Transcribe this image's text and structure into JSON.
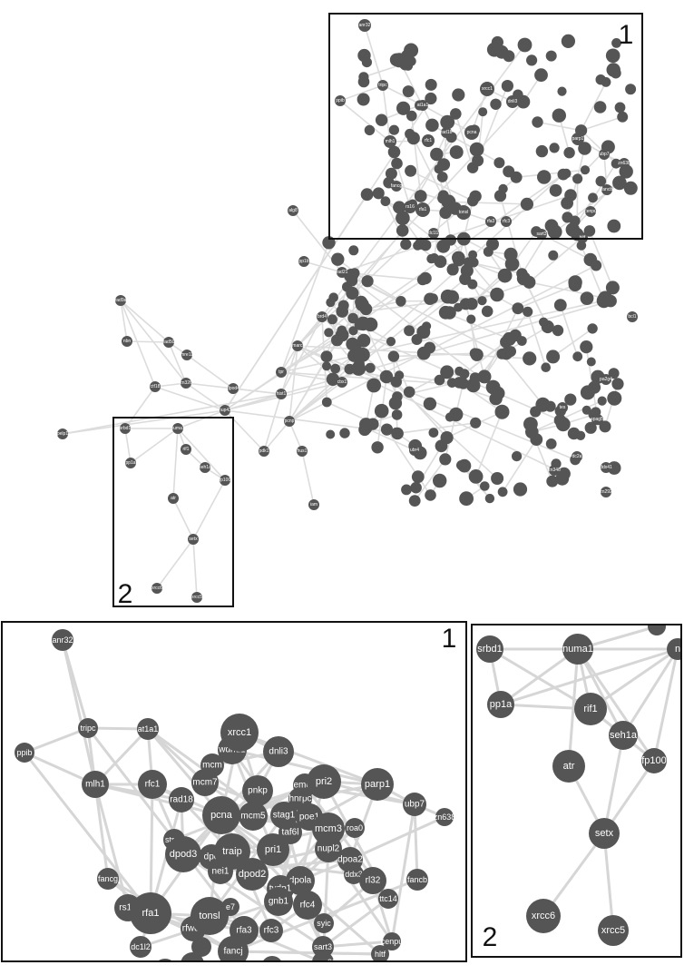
{
  "panel_labels": {
    "top_box": "1",
    "left_box": "2",
    "zoom1": "1",
    "zoom2": "2"
  },
  "overview_labels": {
    "anr32": "anr32",
    "tripc": "tripc",
    "ppib": "ppib",
    "mlh1": "mlh1",
    "at1a1": "at1a1",
    "xrcc1": "xrcc1",
    "dnli3": "dnli3",
    "parp1": "parp1",
    "ubp7": "ubp7",
    "zn638": "zn638",
    "fancb": "fancb",
    "cenpu": "cenpu",
    "fancg": "fancg",
    "rs16": "rs16",
    "rfa1": "rfa1",
    "tonsl": "tonsl",
    "rfa3": "rfa3",
    "rfc3": "rfc3",
    "sart3": "sart3",
    "rfc1": "rfc1",
    "rad18": "rad18",
    "pcna": "pcna",
    "hltf": "hltf",
    "dc1l2": "dc1l2",
    "alg8": "alg8",
    "pp1b": "pp1b",
    "rad50": "rad50",
    "nbn": "nbn",
    "mre11": "mre11",
    "ctf18": "ctf18",
    "zn326": "zn326",
    "dpod4": "dpod4",
    "rad9a": "rad9a",
    "pelp1": "pelp1",
    "smarca": "smarca",
    "pdk1": "pdk1",
    "hus1": "hus1",
    "pcnp": "pcnp",
    "iam": "iam",
    "srbd1": "srbd1",
    "numa1": "numa1",
    "pp1a": "pp1a",
    "rif1": "rif1",
    "seh1a": "seh1a",
    "fp100": "fp100",
    "atr": "atr",
    "setx": "setx",
    "xrcc6": "xrcc6",
    "xrcc5": "xrcc5",
    "brd4": "brd4",
    "tpr": "tpr",
    "nup43": "nup43",
    "hist1": "hist1",
    "rad21": "rad21",
    "cbx1": "cbx1",
    "pa2g4": "pa2g4",
    "spag5": "spag5",
    "bcl1": "bcl1",
    "zn346": "zn346",
    "ubr4": "ubr4",
    "zn292": "zn292",
    "ddx41": "ddx41",
    "dc2a": "dc2a",
    "tes": "tes"
  },
  "zoom1": {
    "nodes": {
      "anr32": "anr32",
      "tripc": "tripc",
      "ppib": "ppib",
      "at1a1": "at1a1",
      "mlh1": "mlh1",
      "rfc1": "rfc1",
      "rad18": "rad18",
      "mcm7": "mcm7",
      "mcm": "mcm",
      "wdhd1": "wdhd1",
      "xrcc1": "xrcc1",
      "dnli3": "dnli3",
      "pnkp": "pnkp",
      "mcm5": "mcm5",
      "pcna": "pcna",
      "strap": "strap",
      "dpod3": "dpod3",
      "dpo": "dpo",
      "traip": "traip",
      "nei1": "nei1",
      "dpod2": "dpod2",
      "pri1": "pri1",
      "taf6l": "taf6l",
      "stag1": "stag1",
      "poe1": "poe1",
      "hnrpc": "hnrpc",
      "eme2": "eme2",
      "pri2": "pri2",
      "parp1": "parp1",
      "mcm3": "mcm3",
      "nupl2": "nupl2",
      "roa0": "roa0",
      "dpoa2": "dpoa2",
      "ddx3": "ddx3",
      "ubp7": "ubp7",
      "zn638": "zn638",
      "fancb": "fancb",
      "rl32": "rl32",
      "ttc14": "ttc14",
      "dpola": "dpola",
      "tydp1": "tydp1",
      "gnb1": "gnb1",
      "rfc4": "rfc4",
      "syic": "syic",
      "fancg": "fancg",
      "rs16": "rs16",
      "rfa1": "rfa1",
      "rfwd3": "rfwd3",
      "tonsl": "tonsl",
      "rfa3": "rfa3",
      "rfc3": "rfc3",
      "fancj": "fancj",
      "sart3": "sart3",
      "mme22": "mme22",
      "cenpu": "cenpu",
      "hltf": "hltf",
      "dc1l2": "dc1l2",
      "e7": "e7"
    }
  },
  "zoom2": {
    "nodes": {
      "srbd1": "srbd1",
      "numa1": "numa1",
      "n": "n",
      "pp1a": "pp1a",
      "rif1": "rif1",
      "seh1a": "seh1a",
      "fp100": "fp100",
      "atr": "atr",
      "setx": "setx",
      "xrcc6": "xrcc6",
      "xrcc5": "xrcc5"
    }
  },
  "colors": {
    "node": "#555555",
    "edge": "#d6d6d6",
    "frame": "#111111",
    "background": "#ffffff"
  }
}
